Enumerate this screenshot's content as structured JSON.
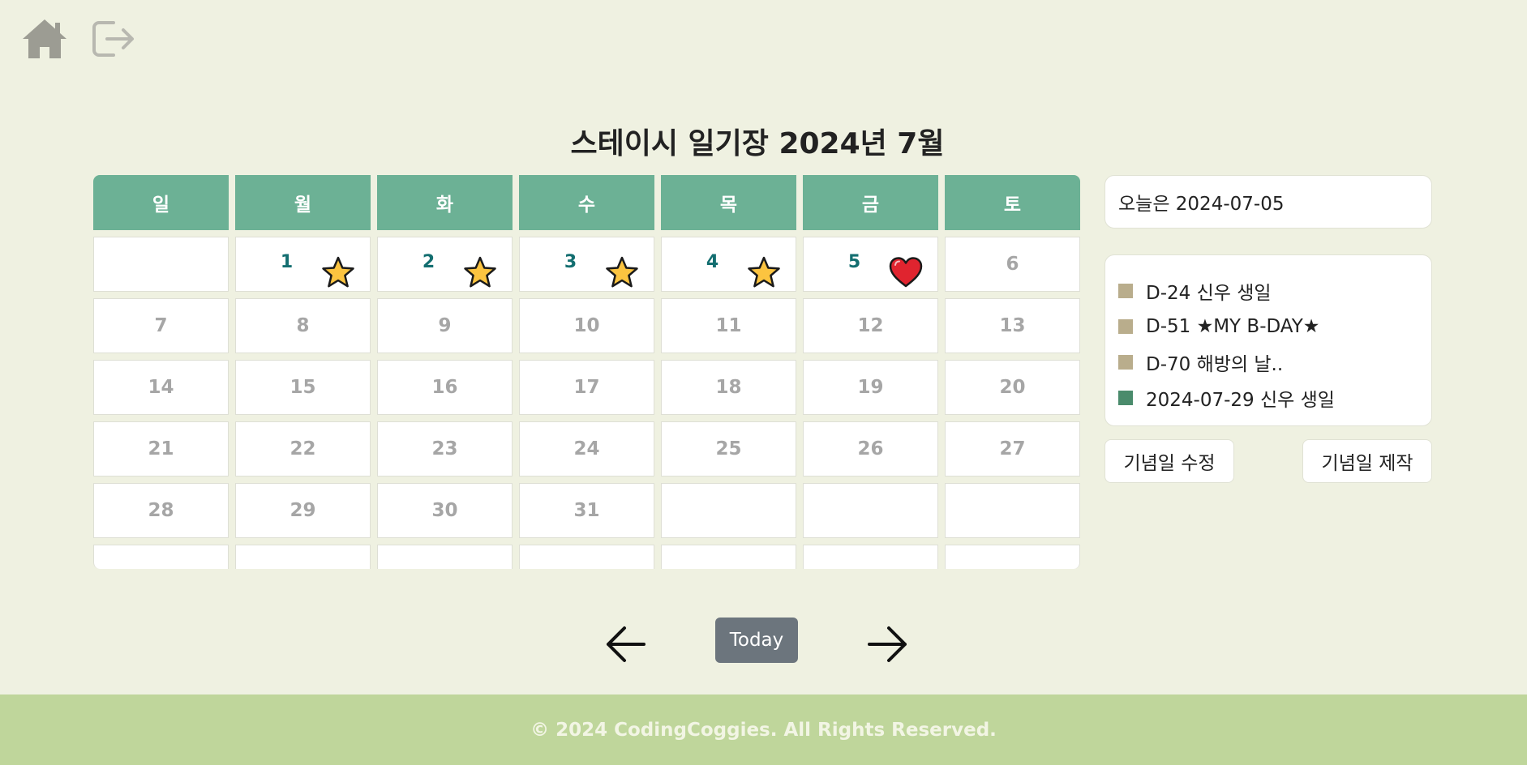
{
  "nav": {
    "home_icon": "home-icon",
    "logout_icon": "logout-icon"
  },
  "title": "스테이시 일기장 2024년 7월",
  "weekdays": [
    "일",
    "월",
    "화",
    "수",
    "목",
    "금",
    "토"
  ],
  "days": {
    "d1": "1",
    "d2": "2",
    "d3": "3",
    "d4": "4",
    "d5": "5",
    "d6": "6",
    "d7": "7",
    "d8": "8",
    "d9": "9",
    "d10": "10",
    "d11": "11",
    "d12": "12",
    "d13": "13",
    "d14": "14",
    "d15": "15",
    "d16": "16",
    "d17": "17",
    "d18": "18",
    "d19": "19",
    "d20": "20",
    "d21": "21",
    "d22": "22",
    "d23": "23",
    "d24": "24",
    "d25": "25",
    "d26": "26",
    "d27": "27",
    "d28": "28",
    "d29": "29",
    "d30": "30",
    "d31": "31"
  },
  "emojis": {
    "d1": "star-icon",
    "d2": "star-icon",
    "d3": "star-icon",
    "d4": "star-icon",
    "d5": "heart-icon"
  },
  "today_text": "오늘은 2024-07-05",
  "ddays": [
    {
      "text": "D-24 신우 생일",
      "color": "#b9ad8c"
    },
    {
      "text": "D-51 ★MY B-DAY★",
      "color": "#b9ad8c"
    },
    {
      "text": "D-70 해방의 날..",
      "color": "#b9ad8c"
    },
    {
      "text": "2024-07-29 신우 생일",
      "color": "#4a8b6c"
    }
  ],
  "buttons": {
    "edit": "기념일 수정",
    "make": "기념일 제작",
    "today": "Today"
  },
  "footer": "© 2024 CodingCoggies. All Rights Reserved.",
  "colors": {
    "header": "#6cb195",
    "background": "#eff1e1",
    "footer": "#bfd69b",
    "today_button": "#6c757d",
    "marked_date": "#136e70"
  }
}
